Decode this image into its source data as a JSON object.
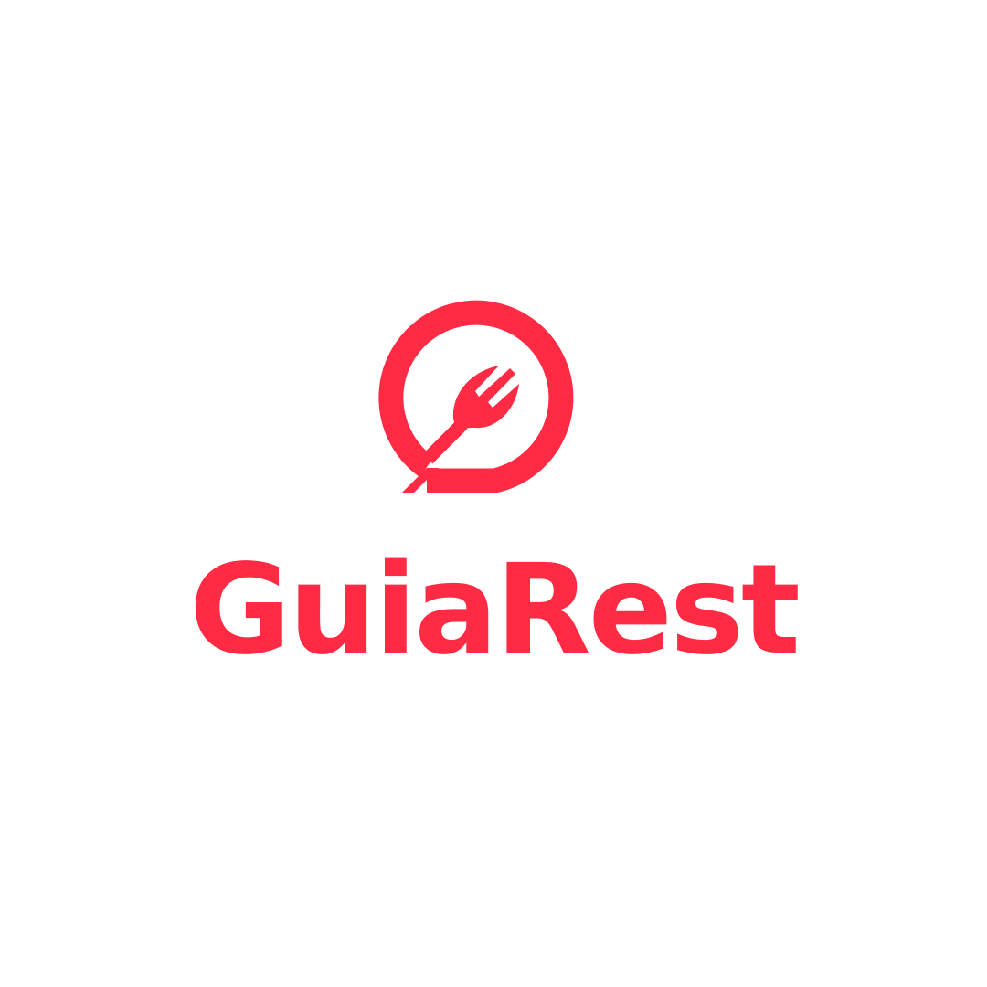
{
  "brand": {
    "name": "GuiaRest",
    "color": "#ff2a43",
    "background": "#ffffff",
    "icon": "fork-in-speech-bubble-icon"
  }
}
